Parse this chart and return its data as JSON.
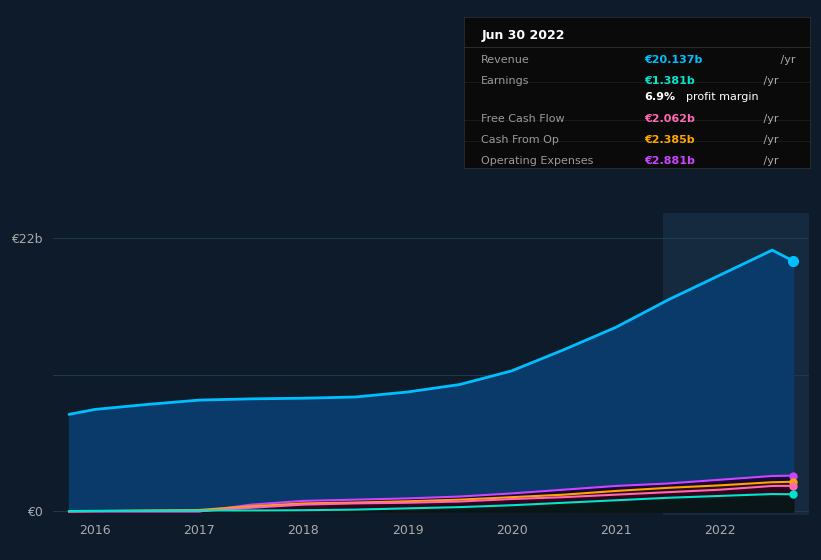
{
  "bg_color": "#0d1b2a",
  "plot_bg_color": "#0d1b2a",
  "highlight_color": "#112233",
  "grid_color": "#1e3a50",
  "years": [
    2015.75,
    2016.0,
    2016.5,
    2017.0,
    2017.5,
    2018.0,
    2018.5,
    2019.0,
    2019.5,
    2020.0,
    2020.5,
    2021.0,
    2021.5,
    2022.0,
    2022.5,
    2022.7
  ],
  "revenue": [
    7.8,
    8.2,
    8.6,
    8.95,
    9.05,
    9.1,
    9.2,
    9.6,
    10.2,
    11.3,
    13.0,
    14.8,
    17.0,
    19.0,
    21.0,
    20.137
  ],
  "earnings": [
    0.03,
    0.05,
    0.06,
    0.08,
    0.08,
    0.1,
    0.15,
    0.25,
    0.35,
    0.5,
    0.7,
    0.9,
    1.1,
    1.25,
    1.4,
    1.381
  ],
  "free_cash_flow": [
    0.0,
    0.02,
    0.02,
    0.02,
    0.3,
    0.55,
    0.65,
    0.7,
    0.8,
    1.0,
    1.15,
    1.35,
    1.55,
    1.75,
    2.05,
    2.062
  ],
  "cash_from_op": [
    0.01,
    0.03,
    0.08,
    0.12,
    0.42,
    0.65,
    0.72,
    0.82,
    0.95,
    1.15,
    1.35,
    1.65,
    1.9,
    2.1,
    2.35,
    2.385
  ],
  "op_expenses": [
    0.0,
    0.0,
    0.0,
    0.0,
    0.55,
    0.85,
    0.95,
    1.05,
    1.2,
    1.45,
    1.75,
    2.05,
    2.25,
    2.55,
    2.85,
    2.881
  ],
  "revenue_color": "#00bfff",
  "earnings_color": "#00e5cc",
  "fcf_color": "#ff69b4",
  "cashop_color": "#ffa500",
  "opex_color": "#cc44ff",
  "revenue_fill": "#0a3a6a",
  "ylim_min": -0.3,
  "ylim_max": 24.0,
  "xlim_min": 2015.6,
  "xlim_max": 2022.85,
  "highlight_x_start": 2021.45,
  "highlight_x_end": 2022.85,
  "ylabel_top": "€22b",
  "ylabel_bottom": "€0",
  "xtick_labels": [
    "2016",
    "2017",
    "2018",
    "2019",
    "2020",
    "2021",
    "2022"
  ],
  "xtick_values": [
    2016,
    2017,
    2018,
    2019,
    2020,
    2021,
    2022
  ],
  "tooltip_title": "Jun 30 2022",
  "tooltip_rows": [
    {
      "label": "Revenue",
      "value": "€20.137b",
      "color": "#00bfff"
    },
    {
      "label": "Earnings",
      "value": "€1.381b",
      "color": "#00e5cc"
    },
    {
      "label": "",
      "value": "6.9%",
      "suffix": " profit margin",
      "color": "#ffffff"
    },
    {
      "label": "Free Cash Flow",
      "value": "€2.062b",
      "color": "#ff69b4"
    },
    {
      "label": "Cash From Op",
      "value": "€2.385b",
      "color": "#ffa500"
    },
    {
      "label": "Operating Expenses",
      "value": "€2.881b",
      "color": "#cc44ff"
    }
  ],
  "legend_entries": [
    {
      "label": "Revenue",
      "color": "#00bfff"
    },
    {
      "label": "Earnings",
      "color": "#00e5cc"
    },
    {
      "label": "Free Cash Flow",
      "color": "#ff69b4"
    },
    {
      "label": "Cash From Op",
      "color": "#ffa500"
    },
    {
      "label": "Operating Expenses",
      "color": "#cc44ff"
    }
  ]
}
